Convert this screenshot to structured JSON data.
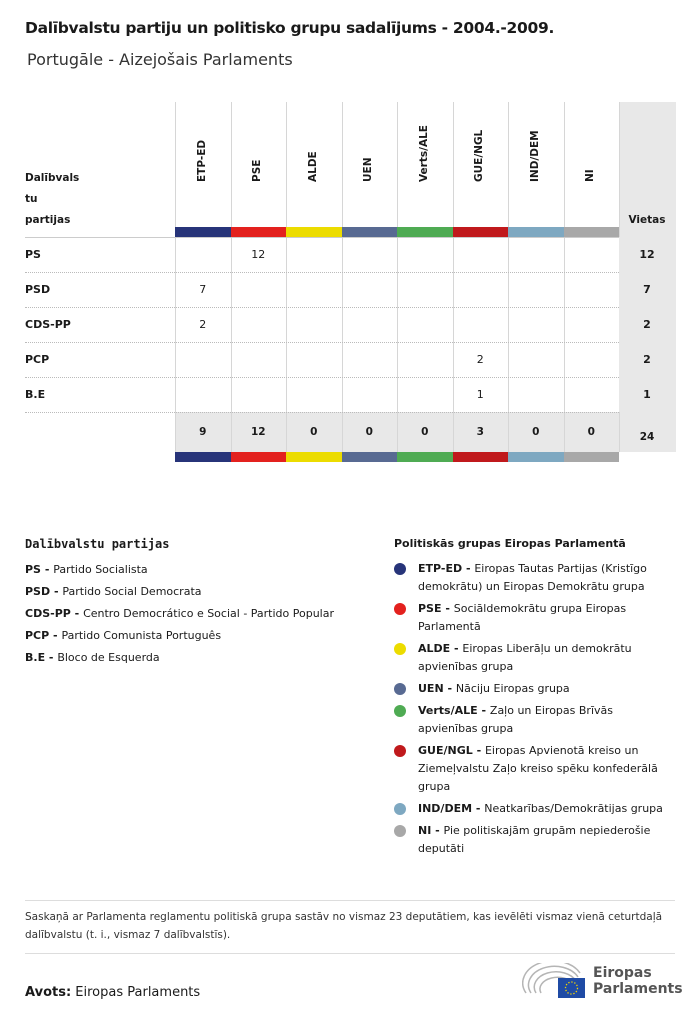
{
  "title": "Dalībvalstu partiju un politisko grupu sadalījums - 2004.-2009.",
  "subtitle": "Portugāle - Aizejošais Parlaments",
  "chart_data": {
    "type": "table",
    "row_header": [
      "Dalībvals",
      "tu",
      "partijas"
    ],
    "total_header": "Vietas",
    "groups": [
      {
        "code": "ETP-ED",
        "color": "#273479"
      },
      {
        "code": "PSE",
        "color": "#e3211e"
      },
      {
        "code": "ALDE",
        "color": "#ecdc00"
      },
      {
        "code": "UEN",
        "color": "#586a92"
      },
      {
        "code": "Verts/ALE",
        "color": "#4fab53"
      },
      {
        "code": "GUE/NGL",
        "color": "#c0191c"
      },
      {
        "code": "IND/DEM",
        "color": "#7ea8c1"
      },
      {
        "code": "NI",
        "color": "#a8a8a8"
      }
    ],
    "rows": [
      {
        "party": "PS",
        "values": [
          null,
          12,
          null,
          null,
          null,
          null,
          null,
          null
        ],
        "total": 12
      },
      {
        "party": "PSD",
        "values": [
          7,
          null,
          null,
          null,
          null,
          null,
          null,
          null
        ],
        "total": 7
      },
      {
        "party": "CDS-PP",
        "values": [
          2,
          null,
          null,
          null,
          null,
          null,
          null,
          null
        ],
        "total": 2
      },
      {
        "party": "PCP",
        "values": [
          null,
          null,
          null,
          null,
          null,
          2,
          null,
          null
        ],
        "total": 2
      },
      {
        "party": "B.E",
        "values": [
          null,
          null,
          null,
          null,
          null,
          1,
          null,
          null
        ],
        "total": 1
      }
    ],
    "totals": [
      9,
      12,
      0,
      0,
      0,
      3,
      0,
      0
    ],
    "grand_total": 24
  },
  "legend_parties": {
    "heading": "Dalībvalstu partijas",
    "items": [
      {
        "code": "PS",
        "sep": " - ",
        "name": "Partido Socialista"
      },
      {
        "code": "PSD",
        "sep": " - ",
        "name": "Partido Social Democrata"
      },
      {
        "code": "CDS-PP",
        "sep": " - ",
        "name": "Centro Democrático e Social - Partido Popular"
      },
      {
        "code": "PCP",
        "sep": " - ",
        "name": "Partido Comunista Português"
      },
      {
        "code": "B.E",
        "sep": " - ",
        "name": "Bloco de Esquerda"
      }
    ]
  },
  "legend_groups": {
    "heading": "Politiskās grupas Eiropas Parlamentā",
    "items": [
      {
        "code": "ETP-ED",
        "sep": " - ",
        "name": "Eiropas Tautas Partijas (Kristīgo demokrātu) un Eiropas Demokrātu grupa"
      },
      {
        "code": "PSE",
        "sep": " - ",
        "name": "Sociāldemokrātu grupa Eiropas Parlamentā"
      },
      {
        "code": "ALDE",
        "sep": " - ",
        "name": "Eiropas Liberāļu un demokrātu apvienības grupa"
      },
      {
        "code": "UEN",
        "sep": " - ",
        "name": "Nāciju Eiropas grupa"
      },
      {
        "code": "Verts/ALE",
        "sep": " - ",
        "name": "Zaļo un Eiropas Brīvās apvienības grupa"
      },
      {
        "code": "GUE/NGL",
        "sep": " - ",
        "name": "Eiropas Apvienotā kreiso un Ziemeļvalstu Zaļo kreiso spēku konfederālā grupa"
      },
      {
        "code": "IND/DEM",
        "sep": " - ",
        "name": "Neatkarības/Demokrātijas grupa"
      },
      {
        "code": "NI",
        "sep": " - ",
        "name": "Pie politiskajām grupām nepiederošie deputāti"
      }
    ]
  },
  "footnote": "Saskaņā ar Parlamenta reglamentu politiskā grupa sastāv no vismaz 23 deputātiem, kas ievēlēti vismaz vienā ceturtdaļā dalībvalstu (t. i., vismaz 7 dalībvalstīs).",
  "source_label": "Avots:",
  "source": "Eiropas Parlaments",
  "logo": {
    "line1": "Eiropas",
    "line2": "Parlaments"
  }
}
